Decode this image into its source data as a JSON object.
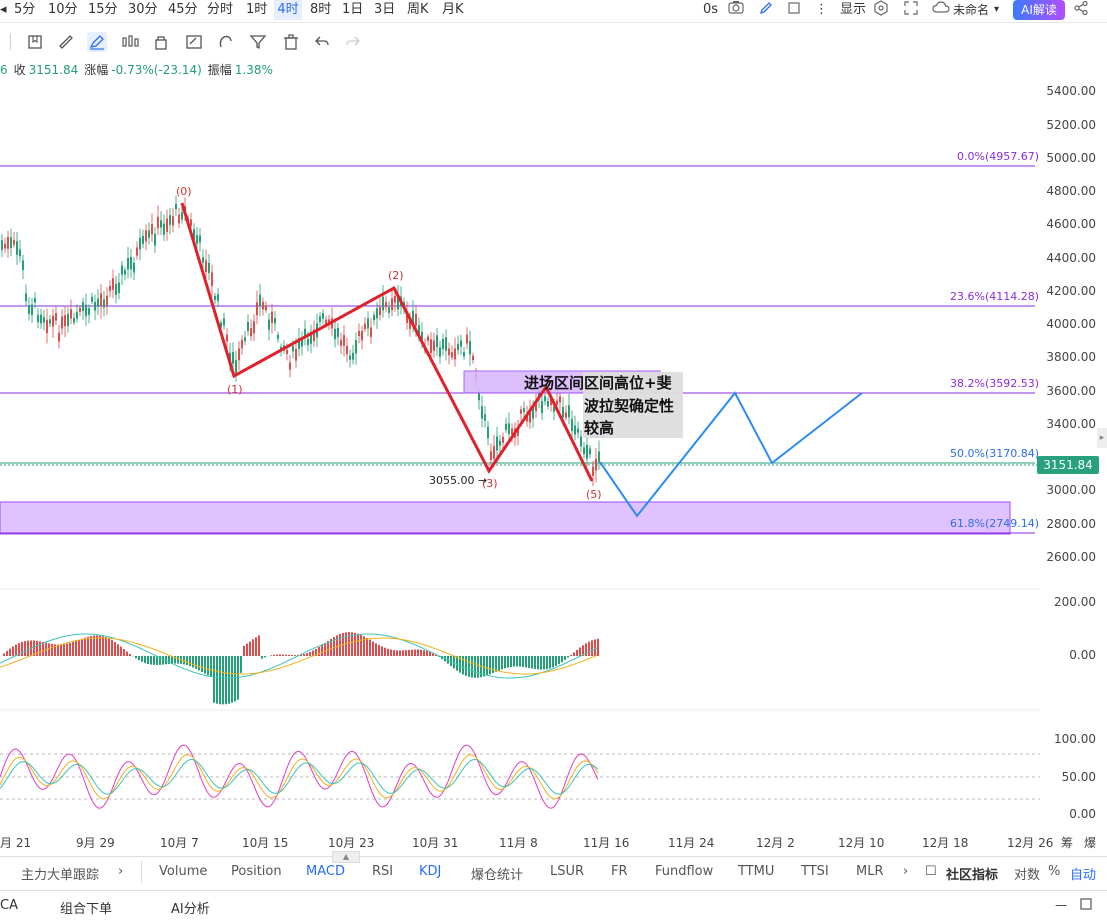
{
  "toolbar": {
    "timeframes": [
      "5分",
      "10分",
      "15分",
      "30分",
      "45分",
      "分时",
      "1时",
      "4时",
      "8时",
      "1日",
      "3日",
      "周K",
      "月K"
    ],
    "active_timeframe": "4时",
    "right_items": {
      "seconds": "0s",
      "display": "显示",
      "unnamed": "未命名",
      "ai": "AI解读"
    }
  },
  "ohlc": {
    "close_label": "收",
    "close": "3151.84",
    "change_label": "涨幅",
    "change": "-0.73%(-23.14)",
    "amp_label": "振幅",
    "amp": "1.38%",
    "prefix": "6"
  },
  "price_axis": [
    "5400.00",
    "5200.00",
    "5000.00",
    "4800.00",
    "4600.00",
    "4400.00",
    "4200.00",
    "4000.00",
    "3800.00",
    "3600.00",
    "3400.00",
    "3000.00",
    "2800.00",
    "2600.00"
  ],
  "macd_axis": [
    "200.00",
    "0.00"
  ],
  "kdj_axis": [
    "100.00",
    "50.00",
    "0.00"
  ],
  "current_price": "3151.84",
  "fib": {
    "l0": "0.0%(4957.67)",
    "l236": "23.6%(4114.28)",
    "l382": "38.2%(3592.53)",
    "l50": "50.0%(3170.84)",
    "l618": "61.8%(2749.14)"
  },
  "waves": {
    "w0": "(0)",
    "w1": "(1)",
    "w2": "(2)",
    "w3": "(3)",
    "w5": "(5)"
  },
  "low_annotation": "3055.00",
  "note": {
    "line1": "进场区间区间高位+斐",
    "line2": "波拉契确定性",
    "line3": "较高"
  },
  "x_axis": [
    "月 21",
    "9月 29",
    "10月 7",
    "10月 15",
    "10月 23",
    "10月 31",
    "11月 8",
    "11月 16",
    "11月 24",
    "12月 2",
    "12月 10",
    "12月 18",
    "12月 26",
    "筹",
    "爆"
  ],
  "tabs": {
    "items": [
      "主力大单跟踪",
      "Volume",
      "Position",
      "MACD",
      "RSI",
      "KDJ",
      "爆仓统计",
      "LSUR",
      "FR",
      "Fundflow",
      "TTMU",
      "TTSI",
      "MLR"
    ],
    "active": [
      "MACD",
      "KDJ"
    ],
    "community": "社区指标",
    "log": "对数",
    "pct": "%",
    "auto": "自动"
  },
  "bottom": {
    "items": [
      "CA",
      "组合下单",
      "AI分析"
    ]
  },
  "colors": {
    "up": "#e04b4b",
    "down": "#23a074",
    "fib": "#8a2be2",
    "wave": "#e0202a",
    "forecast": "#2b8cf6",
    "zone": "#d8b4fe"
  }
}
